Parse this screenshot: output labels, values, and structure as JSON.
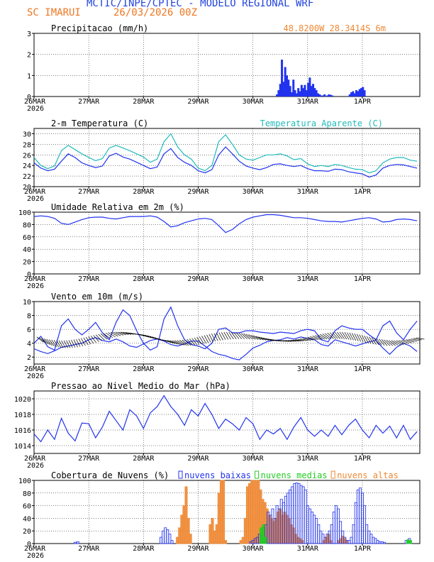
{
  "header": {
    "title": "MCTIC/INPE/CPTEC - MODELO REGIONAL WRF",
    "location": "SC IMARUI",
    "date": "26/03/2026 00Z"
  },
  "x_ticks": [
    "26MAR",
    "27MAR",
    "28MAR",
    "29MAR",
    "30MAR",
    "31MAR",
    "1APR"
  ],
  "year_label": "2026",
  "colors": {
    "blue": "#2233ee",
    "cyan": "#22bbbb",
    "orange": "#ee8833",
    "green": "#22cc22",
    "black": "#000000"
  },
  "chart_data": [
    {
      "id": "precip",
      "type": "bar",
      "title": "Precipitacao (mm/h)",
      "annotation": "48.8200W  28.3414S  6m",
      "ylim": [
        0,
        3
      ],
      "yticks": [
        0,
        1,
        2,
        3
      ],
      "x_days": [
        4.44,
        4.47,
        4.5,
        4.53,
        4.56,
        4.59,
        4.62,
        4.65,
        4.68,
        4.71,
        4.74,
        4.77,
        4.8,
        4.83,
        4.86,
        4.89,
        4.92,
        4.95,
        4.98,
        5.01,
        5.04,
        5.07,
        5.1,
        5.13,
        5.16,
        5.19,
        5.22,
        5.25,
        5.28,
        5.31,
        5.36,
        5.39,
        5.42,
        5.45,
        5.77,
        5.8,
        5.83,
        5.86,
        5.89,
        5.92,
        5.95,
        5.98,
        6.01,
        6.04
      ],
      "values": [
        0.1,
        0.3,
        0.6,
        1.75,
        0.7,
        1.4,
        1.0,
        0.8,
        0.5,
        0.2,
        0.8,
        0.3,
        0.15,
        0.4,
        0.25,
        0.55,
        0.4,
        0.55,
        0.3,
        0.65,
        0.9,
        0.5,
        0.6,
        0.4,
        0.3,
        0.15,
        0.1,
        0.05,
        0.05,
        0.1,
        0.05,
        0.1,
        0.08,
        0.05,
        0.1,
        0.2,
        0.25,
        0.15,
        0.3,
        0.25,
        0.35,
        0.4,
        0.45,
        0.3
      ]
    },
    {
      "id": "temp",
      "type": "line",
      "title": "2-m Temperatura (C)",
      "legend": "Temperatura Aparente (C)",
      "ylim": [
        20,
        31
      ],
      "yticks": [
        20,
        22,
        24,
        26,
        28,
        30
      ],
      "x": [
        0,
        0.125,
        0.25,
        0.375,
        0.5,
        0.625,
        0.75,
        0.875,
        1,
        1.125,
        1.25,
        1.375,
        1.5,
        1.625,
        1.75,
        1.875,
        2,
        2.125,
        2.25,
        2.375,
        2.5,
        2.625,
        2.75,
        2.875,
        3,
        3.125,
        3.25,
        3.375,
        3.5,
        3.625,
        3.75,
        3.875,
        4,
        4.125,
        4.25,
        4.375,
        4.5,
        4.625,
        4.75,
        4.875,
        5,
        5.125,
        5.25,
        5.375,
        5.5,
        5.625,
        5.75,
        5.875,
        6,
        6.125,
        6.25,
        6.375,
        6.5,
        6.625,
        6.75,
        6.875,
        7
      ],
      "series": [
        {
          "name": "2-m Temperatura",
          "color": "blue",
          "values": [
            24.5,
            23.5,
            23.0,
            23.3,
            24.8,
            26.2,
            25.5,
            24.5,
            24.0,
            23.6,
            23.9,
            25.8,
            26.3,
            25.6,
            25.2,
            24.6,
            24.0,
            23.4,
            23.7,
            26.2,
            27.2,
            25.5,
            24.6,
            24.0,
            23.0,
            22.6,
            23.2,
            26.0,
            27.5,
            26.2,
            24.8,
            23.9,
            23.5,
            23.2,
            23.6,
            24.2,
            24.3,
            24.0,
            23.8,
            24.0,
            23.4,
            23.0,
            23.0,
            22.9,
            23.3,
            23.2,
            22.8,
            22.6,
            22.4,
            21.8,
            22.2,
            23.5,
            24.0,
            24.2,
            24.1,
            23.8,
            23.5
          ]
        },
        {
          "name": "Temperatura Aparente",
          "color": "cyan",
          "values": [
            25.5,
            24.0,
            23.4,
            23.9,
            26.8,
            27.8,
            27.0,
            26.2,
            25.5,
            24.9,
            25.3,
            27.3,
            27.8,
            27.3,
            26.8,
            26.2,
            25.6,
            24.6,
            25.2,
            28.5,
            30.0,
            27.5,
            26.0,
            25.2,
            23.5,
            23.0,
            24.0,
            28.5,
            29.8,
            28.0,
            26.0,
            25.2,
            25.0,
            25.5,
            26.0,
            26.0,
            26.2,
            25.8,
            25.1,
            25.3,
            24.3,
            23.8,
            24.0,
            23.8,
            24.2,
            24.0,
            23.6,
            23.3,
            23.2,
            22.6,
            23.0,
            24.5,
            25.2,
            25.5,
            25.5,
            25.0,
            24.8
          ]
        }
      ]
    },
    {
      "id": "humidity",
      "type": "line",
      "title": "Umidade Relativa em 2m (%)",
      "ylim": [
        0,
        100
      ],
      "yticks": [
        0,
        20,
        40,
        60,
        80,
        100
      ],
      "x": [
        0,
        0.125,
        0.25,
        0.375,
        0.5,
        0.625,
        0.75,
        0.875,
        1,
        1.125,
        1.25,
        1.375,
        1.5,
        1.625,
        1.75,
        1.875,
        2,
        2.125,
        2.25,
        2.375,
        2.5,
        2.625,
        2.75,
        2.875,
        3,
        3.125,
        3.25,
        3.375,
        3.5,
        3.625,
        3.75,
        3.875,
        4,
        4.125,
        4.25,
        4.375,
        4.5,
        4.625,
        4.75,
        4.875,
        5,
        5.125,
        5.25,
        5.375,
        5.5,
        5.625,
        5.75,
        5.875,
        6,
        6.125,
        6.25,
        6.375,
        6.5,
        6.625,
        6.75,
        6.875,
        7
      ],
      "series": [
        {
          "name": "Umidade Relativa",
          "color": "blue",
          "values": [
            93,
            94,
            93,
            90,
            82,
            80,
            84,
            88,
            91,
            92,
            92,
            90,
            89,
            91,
            93,
            93,
            93,
            94,
            92,
            85,
            76,
            78,
            83,
            86,
            89,
            90,
            88,
            78,
            67,
            72,
            81,
            88,
            92,
            94,
            96,
            96,
            95,
            93,
            91,
            91,
            90,
            88,
            86,
            85,
            85,
            84,
            86,
            88,
            90,
            91,
            89,
            84,
            85,
            88,
            89,
            88,
            86
          ]
        }
      ]
    },
    {
      "id": "wind",
      "type": "line",
      "title": "Vento em 10m (m/s)",
      "ylim": [
        1,
        10
      ],
      "yticks": [
        2,
        4,
        6,
        8,
        10
      ],
      "x": [
        0,
        0.125,
        0.25,
        0.375,
        0.5,
        0.625,
        0.75,
        0.875,
        1,
        1.125,
        1.25,
        1.375,
        1.5,
        1.625,
        1.75,
        1.875,
        2,
        2.125,
        2.25,
        2.375,
        2.5,
        2.625,
        2.75,
        2.875,
        3,
        3.125,
        3.25,
        3.375,
        3.5,
        3.625,
        3.75,
        3.875,
        4,
        4.125,
        4.25,
        4.375,
        4.5,
        4.625,
        4.75,
        4.875,
        5,
        5.125,
        5.25,
        5.375,
        5.5,
        5.625,
        5.75,
        5.875,
        6,
        6.125,
        6.25,
        6.375,
        6.5,
        6.625,
        6.75,
        6.875,
        7
      ],
      "series": [
        {
          "name": "Vento 10m",
          "color": "blue",
          "values": [
            4.0,
            5.0,
            3.5,
            3.0,
            6.5,
            7.5,
            6.0,
            5.2,
            6.0,
            7.0,
            5.5,
            4.5,
            7.0,
            8.8,
            8.0,
            5.8,
            4.0,
            3.0,
            3.5,
            7.5,
            9.2,
            6.5,
            4.5,
            3.8,
            3.6,
            3.2,
            4.0,
            6.0,
            6.2,
            5.5,
            5.5,
            5.8,
            5.8,
            5.6,
            5.5,
            5.4,
            5.6,
            5.5,
            5.4,
            5.8,
            6.0,
            5.8,
            4.5,
            4.2,
            5.8,
            6.5,
            6.2,
            6.0,
            6.0,
            5.2,
            4.5,
            6.5,
            7.2,
            5.5,
            4.5,
            6.0,
            7.2
          ]
        },
        {
          "name": "Vento 10m (envelope)",
          "color": "blue",
          "values": [
            3.2,
            2.8,
            2.5,
            2.9,
            3.4,
            3.6,
            3.8,
            4.0,
            4.5,
            4.8,
            4.4,
            4.2,
            4.6,
            4.2,
            3.6,
            3.4,
            3.9,
            4.4,
            4.6,
            4.3,
            3.8,
            3.6,
            3.9,
            4.3,
            4.3,
            3.6,
            2.8,
            2.4,
            2.2,
            1.8,
            1.6,
            2.4,
            3.3,
            3.7,
            4.2,
            4.4,
            4.5,
            4.8,
            4.6,
            4.9,
            4.7,
            4.5,
            3.8,
            3.6,
            4.5,
            4.2,
            3.9,
            3.6,
            3.9,
            4.2,
            4.4,
            3.3,
            2.4,
            3.4,
            4.0,
            3.6,
            2.8
          ]
        }
      ]
    },
    {
      "id": "pressure",
      "type": "line",
      "title": "Pressao ao Nivel Medio do Mar (hPa)",
      "ylim": [
        1013,
        1021
      ],
      "yticks": [
        1014,
        1016,
        1018,
        1020
      ],
      "x": [
        0,
        0.125,
        0.25,
        0.375,
        0.5,
        0.625,
        0.75,
        0.875,
        1,
        1.125,
        1.25,
        1.375,
        1.5,
        1.625,
        1.75,
        1.875,
        2,
        2.125,
        2.25,
        2.375,
        2.5,
        2.625,
        2.75,
        2.875,
        3,
        3.125,
        3.25,
        3.375,
        3.5,
        3.625,
        3.75,
        3.875,
        4,
        4.125,
        4.25,
        4.375,
        4.5,
        4.625,
        4.75,
        4.875,
        5,
        5.125,
        5.25,
        5.375,
        5.5,
        5.625,
        5.75,
        5.875,
        6,
        6.125,
        6.25,
        6.375,
        6.5,
        6.625,
        6.75,
        6.875,
        7
      ],
      "series": [
        {
          "name": "Pressao",
          "color": "blue",
          "values": [
            1015.5,
            1014.5,
            1016.0,
            1014.8,
            1017.5,
            1015.6,
            1014.6,
            1016.9,
            1016.8,
            1015.0,
            1016.4,
            1018.4,
            1017.2,
            1016.0,
            1018.6,
            1017.8,
            1016.2,
            1018.2,
            1019.0,
            1020.4,
            1019.0,
            1018.0,
            1016.6,
            1018.6,
            1017.8,
            1019.4,
            1018.0,
            1016.2,
            1017.4,
            1016.8,
            1016.0,
            1017.6,
            1016.8,
            1014.8,
            1016.0,
            1015.5,
            1016.2,
            1014.8,
            1016.4,
            1017.6,
            1016.0,
            1015.2,
            1016.0,
            1015.2,
            1016.6,
            1015.4,
            1016.6,
            1017.4,
            1016.0,
            1015.0,
            1016.6,
            1015.6,
            1016.5,
            1015.0,
            1016.6,
            1014.8,
            1015.8
          ]
        }
      ]
    },
    {
      "id": "clouds",
      "type": "bar",
      "title": "Cobertura de Nuvens (%)",
      "legend": [
        "nuvens baixas",
        "nuvens medias",
        "nuvens altas"
      ],
      "ylim": [
        0,
        100
      ],
      "yticks": [
        0,
        20,
        40,
        60,
        80,
        100
      ],
      "series": [
        {
          "name": "nuvens baixas",
          "color": "blue",
          "x_days": [
            0.75,
            0.8,
            2.32,
            2.36,
            2.4,
            2.44,
            2.48,
            2.52,
            3.96,
            4.0,
            4.04,
            4.08,
            4.12,
            4.16,
            4.2,
            4.24,
            4.28,
            4.32,
            4.36,
            4.4,
            4.44,
            4.48,
            4.52,
            4.56,
            4.6,
            4.64,
            4.68,
            4.72,
            4.76,
            4.8,
            4.84,
            4.88,
            4.92,
            4.96,
            5.0,
            5.04,
            5.08,
            5.12,
            5.16,
            5.2,
            5.24,
            5.28,
            5.32,
            5.36,
            5.4,
            5.44,
            5.48,
            5.52,
            5.56,
            5.6,
            5.64,
            5.68,
            5.72,
            5.76,
            5.8,
            5.84,
            5.88,
            5.92,
            5.96,
            6.0,
            6.04,
            6.08,
            6.12,
            6.16,
            6.2,
            6.24,
            6.28,
            6.32,
            6.36,
            6.4,
            6.8,
            6.86
          ],
          "values": [
            2,
            3,
            10,
            20,
            25,
            22,
            15,
            5,
            3,
            5,
            8,
            10,
            15,
            12,
            25,
            30,
            50,
            45,
            55,
            40,
            60,
            55,
            70,
            65,
            75,
            80,
            85,
            90,
            95,
            96,
            95,
            92,
            90,
            85,
            60,
            55,
            50,
            45,
            40,
            30,
            20,
            15,
            10,
            15,
            20,
            30,
            50,
            60,
            55,
            35,
            20,
            10,
            5,
            5,
            10,
            30,
            65,
            85,
            88,
            80,
            60,
            30,
            20,
            15,
            10,
            8,
            5,
            3,
            3,
            2,
            5,
            8
          ]
        },
        {
          "name": "nuvens medias",
          "color": "green",
          "x_days": [
            4.15,
            4.19,
            4.23,
            6.83,
            6.88
          ],
          "values": [
            25,
            30,
            10,
            6,
            5
          ]
        },
        {
          "name": "nuvens altas",
          "color": "orange",
          "x_days": [
            2.62,
            2.66,
            2.7,
            2.74,
            2.78,
            2.82,
            2.86,
            3.22,
            3.26,
            3.3,
            3.34,
            3.38,
            3.42,
            3.46,
            3.5,
            3.78,
            3.82,
            3.86,
            3.9,
            3.94,
            3.98,
            4.02,
            4.06,
            4.1,
            4.14,
            4.18,
            4.22,
            4.26,
            4.3,
            4.34,
            4.38,
            4.42,
            4.46,
            4.5,
            4.54,
            4.58,
            4.62,
            4.66,
            4.7,
            4.74,
            4.78,
            4.82,
            4.86,
            4.9,
            5.3,
            5.34,
            5.38,
            5.42,
            5.56,
            5.6,
            5.64,
            5.68,
            5.72
          ],
          "values": [
            10,
            25,
            45,
            60,
            90,
            40,
            15,
            30,
            40,
            20,
            30,
            80,
            100,
            100,
            5,
            5,
            10,
            40,
            90,
            95,
            100,
            100,
            100,
            100,
            85,
            70,
            65,
            55,
            45,
            40,
            35,
            40,
            50,
            55,
            45,
            50,
            45,
            40,
            30,
            25,
            15,
            10,
            8,
            5,
            5,
            10,
            15,
            5,
            5,
            8,
            12,
            8,
            4
          ]
        }
      ]
    }
  ]
}
